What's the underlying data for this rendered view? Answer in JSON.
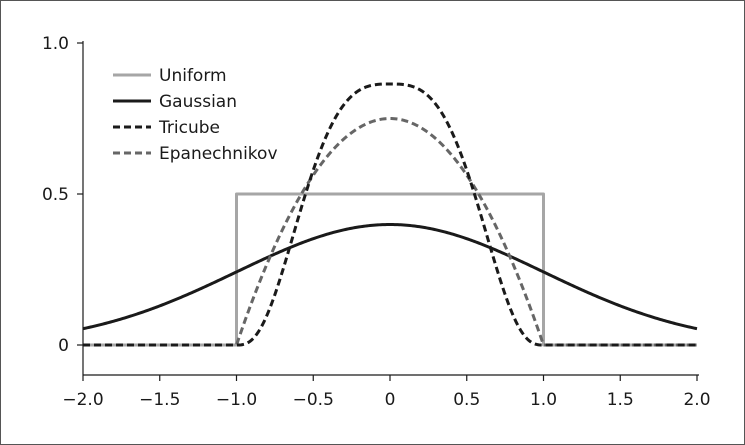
{
  "chart_data": {
    "type": "line",
    "title": "",
    "xlabel": "",
    "ylabel": "",
    "xlim": [
      -2.0,
      2.0
    ],
    "ylim": [
      -0.1,
      1.0
    ],
    "x_ticks": [
      -2.0,
      -1.5,
      -1.0,
      -0.5,
      0,
      0.5,
      1.0,
      1.5,
      2.0
    ],
    "x_tick_labels": [
      "−2.0",
      "−1.5",
      "−1.0",
      "−0.5",
      "0",
      "0.5",
      "1.0",
      "1.5",
      "2.0"
    ],
    "y_ticks": [
      0,
      0.5,
      1.0
    ],
    "y_tick_labels": [
      "0",
      "0.5",
      "1.0"
    ],
    "grid": false,
    "legend_position": "top-left",
    "series": [
      {
        "name": "Uniform",
        "kernel": "uniform",
        "color": "#a6a6a6",
        "dash": "solid"
      },
      {
        "name": "Gaussian",
        "kernel": "gaussian",
        "color": "#1a1a1a",
        "dash": "solid"
      },
      {
        "name": "Tricube",
        "kernel": "tricube",
        "color": "#1a1a1a",
        "dash": "dashed"
      },
      {
        "name": "Epanechnikov",
        "kernel": "epanechnikov",
        "color": "#666666",
        "dash": "dashed"
      }
    ]
  }
}
